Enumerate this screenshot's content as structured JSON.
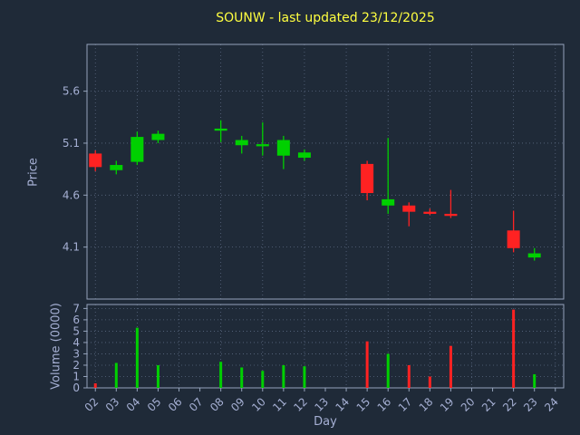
{
  "title": "SOUNW - last updated 23/12/2025",
  "colors": {
    "background": "#1f2a38",
    "up": "#00d000",
    "down": "#ff2222",
    "title": "#ffff40",
    "tick": "#a6b0d4",
    "grid": "#5a6880",
    "spine": "#95a3bb"
  },
  "chart_data": [
    {
      "type": "candlestick",
      "title": "SOUNW - last updated 23/12/2025",
      "xlabel": "Day",
      "ylabel": "Price",
      "ylim": [
        3.6,
        6.05
      ],
      "yticks": [
        4.1,
        4.6,
        5.1,
        5.6
      ],
      "xticks": [
        "02",
        "03",
        "04",
        "05",
        "06",
        "07",
        "08",
        "09",
        "10",
        "11",
        "12",
        "13",
        "14",
        "15",
        "16",
        "17",
        "18",
        "19",
        "20",
        "21",
        "22",
        "23",
        "24"
      ],
      "grid": "dotted, vertical lines every 2 days",
      "candles": [
        {
          "day": 2,
          "open": 5.0,
          "high": 5.03,
          "low": 4.83,
          "close": 4.87
        },
        {
          "day": 3,
          "open": 4.84,
          "high": 4.93,
          "low": 4.8,
          "close": 4.89
        },
        {
          "day": 4,
          "open": 4.92,
          "high": 5.21,
          "low": 4.89,
          "close": 5.16
        },
        {
          "day": 5,
          "open": 5.13,
          "high": 5.22,
          "low": 5.1,
          "close": 5.19
        },
        {
          "day": 8,
          "open": 5.22,
          "high": 5.32,
          "low": 5.11,
          "close": 5.24
        },
        {
          "day": 9,
          "open": 5.08,
          "high": 5.17,
          "low": 5.0,
          "close": 5.13
        },
        {
          "day": 10,
          "open": 5.07,
          "high": 5.3,
          "low": 4.98,
          "close": 5.09
        },
        {
          "day": 11,
          "open": 4.98,
          "high": 5.17,
          "low": 4.85,
          "close": 5.13
        },
        {
          "day": 12,
          "open": 4.96,
          "high": 5.04,
          "low": 4.93,
          "close": 5.01
        },
        {
          "day": 15,
          "open": 4.9,
          "high": 4.93,
          "low": 4.55,
          "close": 4.62
        },
        {
          "day": 16,
          "open": 4.5,
          "high": 5.15,
          "low": 4.42,
          "close": 4.56
        },
        {
          "day": 17,
          "open": 4.5,
          "high": 4.53,
          "low": 4.3,
          "close": 4.44
        },
        {
          "day": 18,
          "open": 4.44,
          "high": 4.47,
          "low": 4.41,
          "close": 4.42
        },
        {
          "day": 19,
          "open": 4.42,
          "high": 4.65,
          "low": 4.38,
          "close": 4.4
        },
        {
          "day": 22,
          "open": 4.26,
          "high": 4.45,
          "low": 4.05,
          "close": 4.09
        },
        {
          "day": 23,
          "open": 4.0,
          "high": 4.09,
          "low": 3.97,
          "close": 4.04
        }
      ]
    },
    {
      "type": "bar",
      "xlabel": "Day",
      "ylabel": "Volume (0000)",
      "ylim": [
        0,
        7.35
      ],
      "yticks": [
        0,
        1,
        2,
        3,
        4,
        5,
        6,
        7
      ],
      "values": [
        {
          "day": 2,
          "value": 0.4,
          "direction": "down"
        },
        {
          "day": 3,
          "value": 2.2,
          "direction": "up"
        },
        {
          "day": 4,
          "value": 5.3,
          "direction": "up"
        },
        {
          "day": 5,
          "value": 2.0,
          "direction": "up"
        },
        {
          "day": 8,
          "value": 2.3,
          "direction": "up"
        },
        {
          "day": 9,
          "value": 1.8,
          "direction": "up"
        },
        {
          "day": 10,
          "value": 1.5,
          "direction": "up"
        },
        {
          "day": 11,
          "value": 2.0,
          "direction": "up"
        },
        {
          "day": 12,
          "value": 1.9,
          "direction": "up"
        },
        {
          "day": 15,
          "value": 4.1,
          "direction": "down"
        },
        {
          "day": 16,
          "value": 3.0,
          "direction": "up"
        },
        {
          "day": 17,
          "value": 2.0,
          "direction": "down"
        },
        {
          "day": 18,
          "value": 1.0,
          "direction": "down"
        },
        {
          "day": 19,
          "value": 3.7,
          "direction": "down"
        },
        {
          "day": 22,
          "value": 6.9,
          "direction": "down"
        },
        {
          "day": 23,
          "value": 1.2,
          "direction": "up"
        }
      ]
    }
  ]
}
